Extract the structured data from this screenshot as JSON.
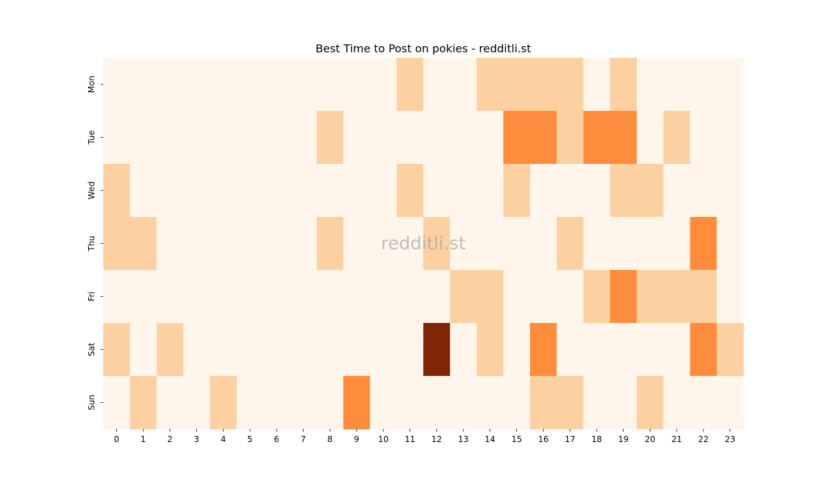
{
  "chart_data": {
    "type": "heatmap",
    "title": "Best Time to Post on pokies - redditli.st",
    "xlabel": "",
    "ylabel": "",
    "x": [
      "0",
      "1",
      "2",
      "3",
      "4",
      "5",
      "6",
      "7",
      "8",
      "9",
      "10",
      "11",
      "12",
      "13",
      "14",
      "15",
      "16",
      "17",
      "18",
      "19",
      "20",
      "21",
      "22",
      "23"
    ],
    "y": [
      "Mon",
      "Tue",
      "Wed",
      "Thu",
      "Fri",
      "Sat",
      "Sun"
    ],
    "values": [
      [
        0,
        0,
        0,
        0,
        0,
        0,
        0,
        0,
        0,
        0,
        0,
        1,
        0,
        0,
        1,
        1,
        1,
        1,
        0,
        1,
        0,
        0,
        0,
        0
      ],
      [
        0,
        0,
        0,
        0,
        0,
        0,
        0,
        0,
        1,
        0,
        0,
        0,
        0,
        0,
        0,
        2,
        2,
        1,
        2,
        2,
        0,
        1,
        0,
        0
      ],
      [
        1,
        0,
        0,
        0,
        0,
        0,
        0,
        0,
        0,
        0,
        0,
        1,
        0,
        0,
        0,
        1,
        0,
        0,
        0,
        1,
        1,
        0,
        0,
        0
      ],
      [
        1,
        1,
        0,
        0,
        0,
        0,
        0,
        0,
        1,
        0,
        0,
        0,
        1,
        0,
        0,
        0,
        0,
        1,
        0,
        0,
        0,
        0,
        2,
        0
      ],
      [
        0,
        0,
        0,
        0,
        0,
        0,
        0,
        0,
        0,
        0,
        0,
        0,
        0,
        1,
        1,
        0,
        0,
        0,
        1,
        2,
        1,
        1,
        1,
        0
      ],
      [
        1,
        0,
        1,
        0,
        0,
        0,
        0,
        0,
        0,
        0,
        0,
        0,
        4,
        0,
        1,
        0,
        2,
        0,
        0,
        0,
        0,
        0,
        2,
        1
      ],
      [
        0,
        1,
        0,
        0,
        1,
        0,
        0,
        0,
        0,
        2,
        0,
        0,
        0,
        0,
        0,
        0,
        1,
        1,
        0,
        0,
        1,
        0,
        0,
        0
      ]
    ],
    "colormap": {
      "0": "#fff5eb",
      "1": "#fdd0a2",
      "2": "#fd8d3c",
      "4": "#7f2704"
    },
    "colorbar": false,
    "watermark": "redditli.st"
  }
}
